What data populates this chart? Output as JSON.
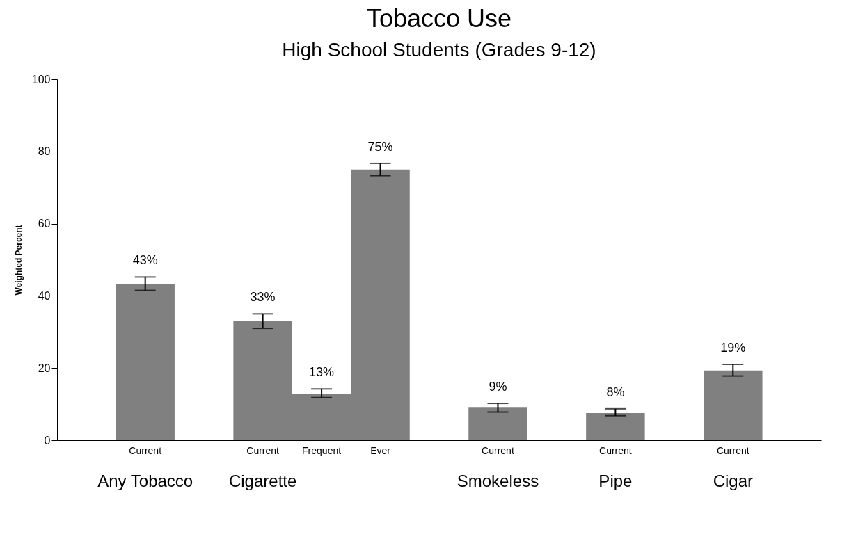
{
  "chart_data": {
    "type": "bar",
    "title": "Tobacco Use",
    "subtitle": "High School Students (Grades 9-12)",
    "ylabel": "Weighted Percent",
    "categories": [
      null,
      "Current\nAny Tobacco",
      null,
      "Current\nCigarette",
      "Frequent",
      "Ever",
      null,
      "Current\nSmokeless",
      null,
      "Current\nPipe",
      null,
      "Current\nCigar",
      null
    ],
    "values": [
      null,
      43.3,
      null,
      33,
      12.8,
      75,
      null,
      9,
      null,
      7.5,
      null,
      19.3,
      null
    ],
    "errors": [
      null,
      [
        41.5,
        45.2
      ],
      null,
      [
        31,
        35
      ],
      [
        11.8,
        14.2
      ],
      [
        73.3,
        76.7
      ],
      null,
      [
        7.8,
        10.2
      ],
      null,
      [
        6.8,
        8.7
      ],
      null,
      [
        17.8,
        21
      ],
      null
    ],
    "value_labels": [
      null,
      "43%",
      null,
      "33%",
      "13%",
      "75%",
      null,
      "9%",
      null,
      "8%",
      null,
      "19%",
      null
    ],
    "color": "#808080",
    "ylim": [
      0,
      100
    ],
    "yticks": [
      0,
      20,
      40,
      60,
      80,
      100
    ]
  }
}
